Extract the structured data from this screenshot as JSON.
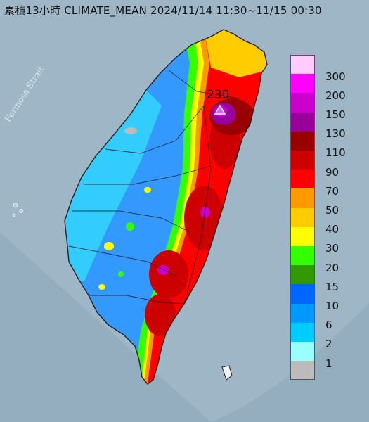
{
  "title": "累積13小時 CLIMATE_MEAN 2024/11/14 11:30~11/15 00:30",
  "sea_label": "Formosa Strait",
  "peak": {
    "value_label": "230",
    "marker": "triangle-icon"
  },
  "legend": [
    {
      "label": "300",
      "color": "#ffccff"
    },
    {
      "label": "200",
      "color": "#ff00ff"
    },
    {
      "label": "150",
      "color": "#cc00cc"
    },
    {
      "label": "130",
      "color": "#990099"
    },
    {
      "label": "110",
      "color": "#990000"
    },
    {
      "label": "90",
      "color": "#cc0000"
    },
    {
      "label": "70",
      "color": "#ff0000"
    },
    {
      "label": "50",
      "color": "#ff9900"
    },
    {
      "label": "40",
      "color": "#ffcc00"
    },
    {
      "label": "30",
      "color": "#ffff00"
    },
    {
      "label": "20",
      "color": "#33ff00"
    },
    {
      "label": "15",
      "color": "#339900"
    },
    {
      "label": "10",
      "color": "#0066ff"
    },
    {
      "label": "6",
      "color": "#0099ff"
    },
    {
      "label": "2",
      "color": "#00ccff"
    },
    {
      "label": "1",
      "color": "#99ffff"
    },
    {
      "label": "",
      "color": "#bbbbbb"
    }
  ]
}
